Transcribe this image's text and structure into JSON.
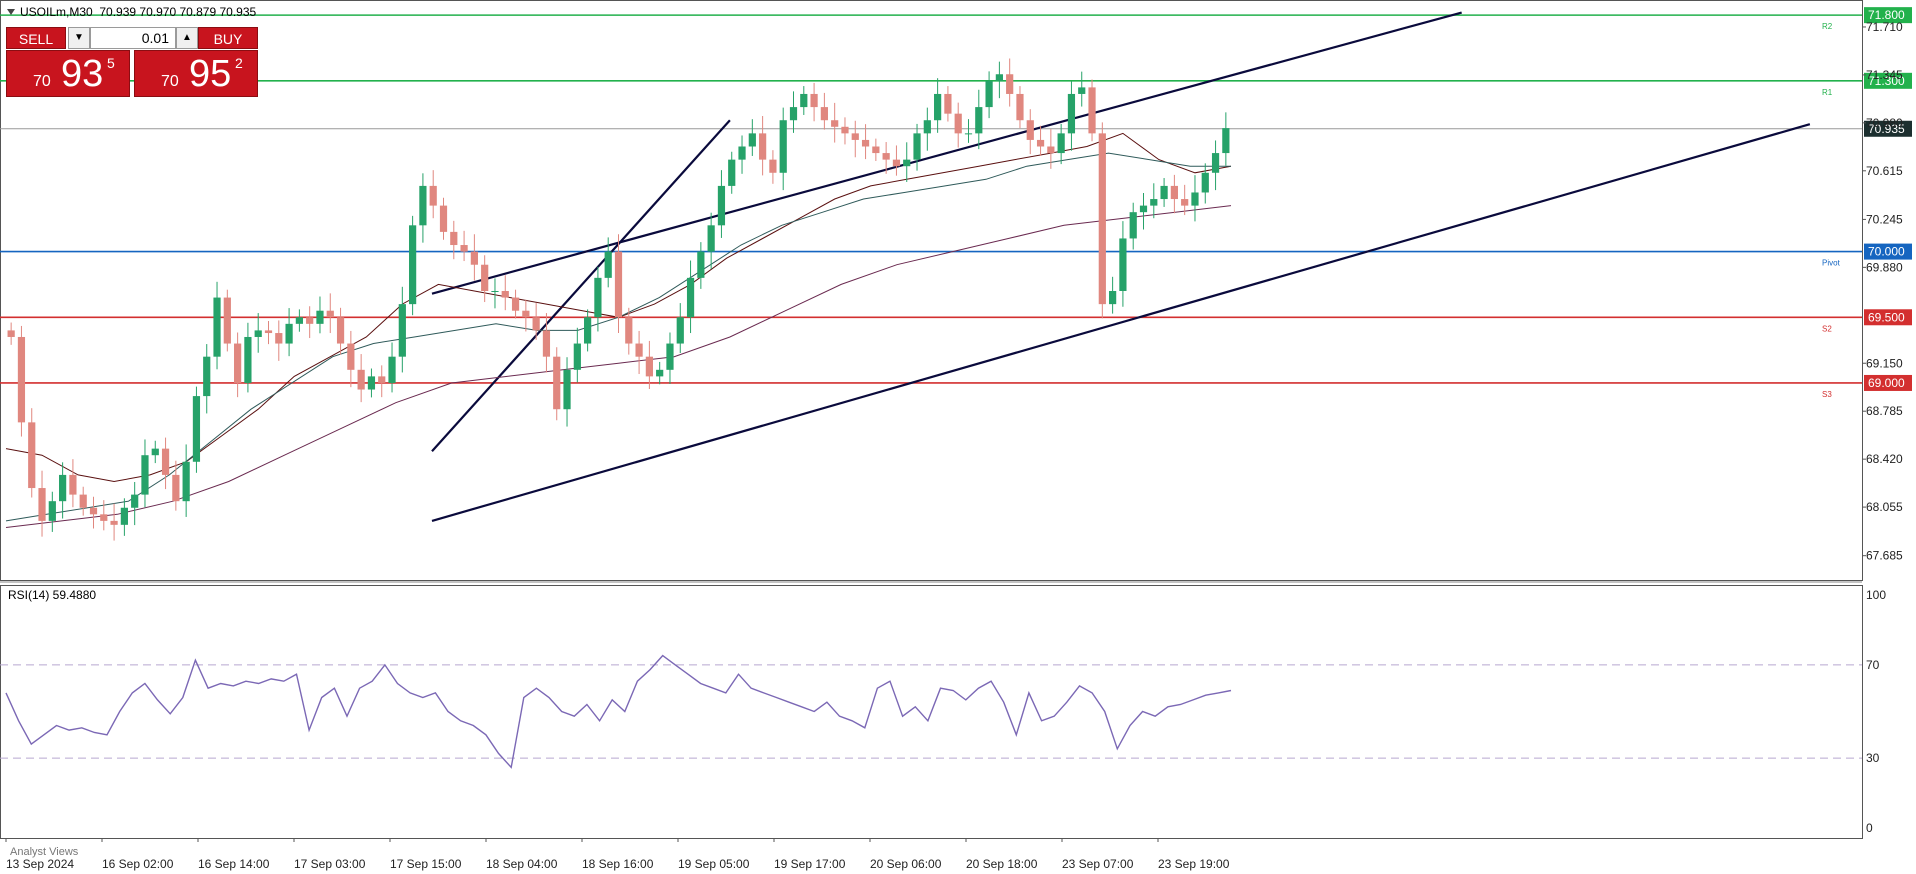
{
  "header": {
    "symbol": "USOILm",
    "timeframe": "M30",
    "ohlc": "70.939 70.970 70.879 70.935"
  },
  "trade_panel": {
    "sell_label": "SELL",
    "buy_label": "BUY",
    "volume": "0.01",
    "sell_price_small": "70",
    "sell_price_big": "93",
    "sell_price_sup": "5",
    "buy_price_small": "70",
    "buy_price_big": "95",
    "buy_price_sup": "2"
  },
  "bottom_tab": "Analyst Views",
  "colors": {
    "bull": "#26a269",
    "bear": "#e0877f",
    "green_level": "#22b14c",
    "red_level": "#d32f2f",
    "blue_level": "#1565c0",
    "channel": "#0a0a3c",
    "rsi": "#7b68b5",
    "ma_dark": "#5a1010",
    "ma_mid": "#2f5a5a",
    "ma_light": "#6a2a50"
  },
  "chart_data": [
    {
      "type": "candlestick",
      "ylim": [
        67.5,
        71.9
      ],
      "y_ticks": [
        "71.710",
        "71.345",
        "70.980",
        "70.615",
        "70.245",
        "69.880",
        "69.150",
        "68.785",
        "68.420",
        "68.055",
        "67.685"
      ],
      "x_ticks": [
        "13 Sep 2024",
        "16 Sep 02:00",
        "16 Sep 14:00",
        "17 Sep 03:00",
        "17 Sep 15:00",
        "18 Sep 04:00",
        "18 Sep 16:00",
        "19 Sep 05:00",
        "19 Sep 17:00",
        "20 Sep 06:00",
        "20 Sep 18:00",
        "23 Sep 07:00",
        "23 Sep 19:00"
      ],
      "current_price": "70.935",
      "levels": [
        {
          "value": 71.8,
          "label": "71.800",
          "kind": "green",
          "tag": "R2"
        },
        {
          "value": 71.3,
          "label": "71.300",
          "kind": "green",
          "tag": "R1"
        },
        {
          "value": 70.0,
          "label": "70.000",
          "kind": "blue",
          "tag": "Pivot"
        },
        {
          "value": 69.5,
          "label": "69.500",
          "kind": "red",
          "tag": "S2"
        },
        {
          "value": 69.0,
          "label": "69.000",
          "kind": "red",
          "tag": "S3"
        }
      ],
      "channel_lines": [
        {
          "from": [
            0.232,
            68.48
          ],
          "to": [
            0.392,
            71.0
          ]
        },
        {
          "from": [
            0.232,
            69.68
          ],
          "to": [
            0.785,
            71.82
          ]
        },
        {
          "from": [
            0.232,
            67.95
          ],
          "to": [
            0.972,
            70.97
          ]
        }
      ],
      "series": [
        {
          "kind": "close_path",
          "values": [
            69.35,
            68.7,
            68.2,
            67.95,
            68.1,
            68.3,
            68.15,
            68.05,
            68.0,
            67.95,
            67.92,
            68.05,
            68.15,
            68.45,
            68.5,
            68.3,
            68.1,
            68.4,
            68.9,
            69.2,
            69.65,
            69.3,
            69.0,
            69.35,
            69.4,
            69.38,
            69.3,
            69.45,
            69.5,
            69.45,
            69.55,
            69.5,
            69.3,
            69.1,
            68.95,
            69.05,
            69.0,
            69.2,
            69.6,
            70.2,
            70.5,
            70.35,
            70.15,
            70.05,
            70.0,
            69.9,
            69.7,
            69.7,
            69.65,
            69.55,
            69.5,
            69.4,
            69.2,
            68.8,
            69.1,
            69.3,
            69.5,
            69.8,
            70.0,
            69.5,
            69.3,
            69.2,
            69.05,
            69.1,
            69.3,
            69.5,
            69.8,
            70.0,
            70.2,
            70.5,
            70.7,
            70.8,
            70.9,
            70.7,
            70.6,
            71.0,
            71.1,
            71.2,
            71.1,
            71.0,
            70.95,
            70.9,
            70.85,
            70.8,
            70.75,
            70.7,
            70.65,
            70.7,
            70.9,
            71.0,
            71.2,
            71.05,
            70.9,
            70.9,
            71.1,
            71.3,
            71.35,
            71.2,
            71.0,
            70.85,
            70.8,
            70.75,
            70.9,
            71.2,
            71.25,
            70.9,
            69.6,
            69.7,
            70.1,
            70.3,
            70.35,
            70.4,
            70.5,
            70.4,
            70.35,
            70.45,
            70.6,
            70.75,
            70.94
          ]
        },
        {
          "kind": "ma_dark",
          "values": [
            68.5,
            68.45,
            68.3,
            68.25,
            68.3,
            68.4,
            68.6,
            68.8,
            69.05,
            69.2,
            69.35,
            69.6,
            69.75,
            69.7,
            69.65,
            69.6,
            69.55,
            69.5,
            69.6,
            69.75,
            69.95,
            70.1,
            70.25,
            70.4,
            70.5,
            70.55,
            70.6,
            70.65,
            70.7,
            70.75,
            70.8,
            70.9,
            70.7,
            70.6,
            70.65
          ]
        },
        {
          "kind": "ma_mid",
          "values": [
            67.95,
            68.0,
            68.05,
            68.1,
            68.3,
            68.55,
            68.8,
            69.0,
            69.2,
            69.3,
            69.35,
            69.4,
            69.45,
            69.4,
            69.4,
            69.5,
            69.65,
            69.85,
            70.05,
            70.2,
            70.3,
            70.4,
            70.45,
            70.5,
            70.55,
            70.65,
            70.7,
            70.75,
            70.7,
            70.65,
            70.65
          ]
        },
        {
          "kind": "ma_light",
          "values": [
            67.9,
            67.95,
            68.0,
            68.1,
            68.25,
            68.45,
            68.65,
            68.85,
            69.0,
            69.05,
            69.1,
            69.15,
            69.2,
            69.35,
            69.55,
            69.75,
            69.9,
            70.0,
            70.1,
            70.2,
            70.25,
            70.3,
            70.35
          ]
        }
      ]
    },
    {
      "type": "line",
      "title": "RSI(14) 59.4880",
      "ylim": [
        0,
        100
      ],
      "y_ticks": [
        "100",
        "70",
        "30",
        "0"
      ],
      "reference_lines": [
        70,
        30
      ],
      "series": [
        {
          "values": [
            58,
            46,
            36,
            40,
            44,
            42,
            43,
            41,
            40,
            50,
            58,
            62,
            55,
            49,
            56,
            72,
            60,
            62,
            61,
            63,
            62,
            64,
            63,
            66,
            42,
            56,
            60,
            48,
            60,
            63,
            70,
            62,
            58,
            56,
            58,
            50,
            46,
            44,
            40,
            32,
            26,
            56,
            60,
            56,
            50,
            48,
            53,
            46,
            55,
            50,
            63,
            68,
            74,
            70,
            66,
            62,
            60,
            58,
            66,
            60,
            58,
            56,
            54,
            52,
            50,
            54,
            48,
            46,
            43,
            60,
            63,
            48,
            52,
            46,
            60,
            59,
            55,
            60,
            63,
            54,
            40,
            58,
            46,
            48,
            54,
            61,
            58,
            50,
            34,
            44,
            50,
            48,
            52,
            53,
            55,
            57,
            58,
            59
          ]
        }
      ]
    }
  ]
}
